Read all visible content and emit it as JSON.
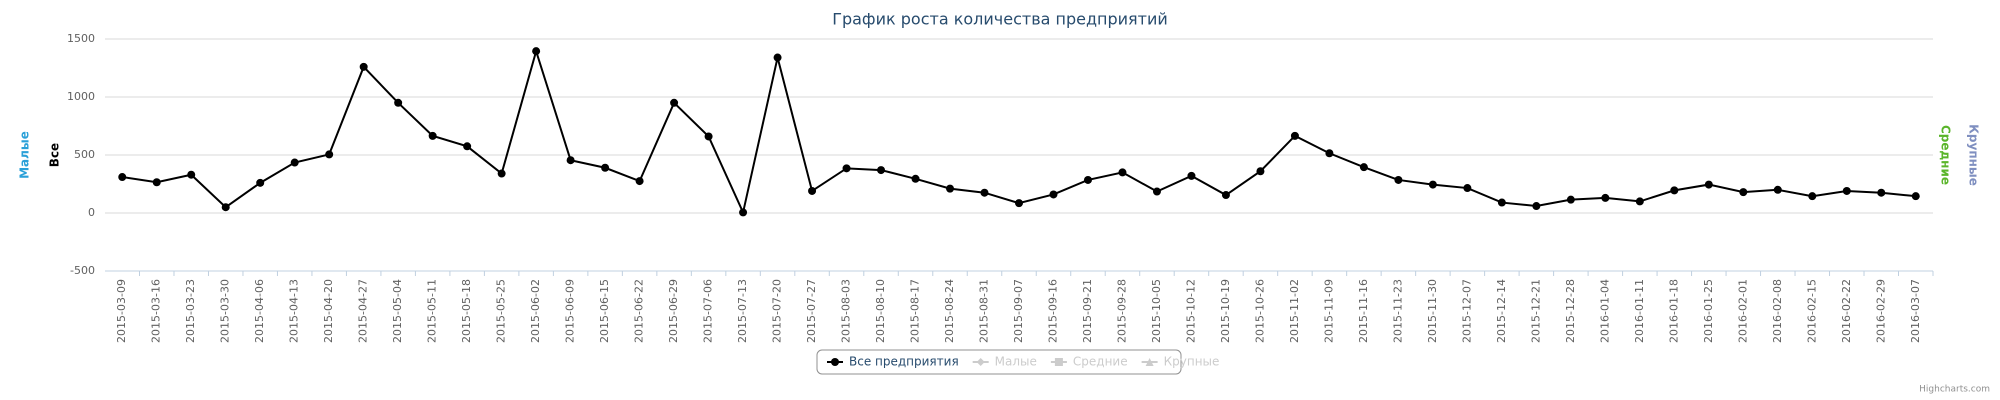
{
  "chart_data": {
    "type": "line",
    "title": "График роста количества предприятий",
    "axis_titles": [
      {
        "text": "Малые",
        "color": "#2aa0d8"
      },
      {
        "text": "Все",
        "color": "#000000"
      },
      {
        "text": "Средние",
        "color": "#5ab52a"
      },
      {
        "text": "Крупные",
        "color": "#7f8fc0"
      }
    ],
    "categories": [
      "2015-03-09",
      "2015-03-16",
      "2015-03-23",
      "2015-03-30",
      "2015-04-06",
      "2015-04-13",
      "2015-04-20",
      "2015-04-27",
      "2015-05-04",
      "2015-05-11",
      "2015-05-18",
      "2015-05-25",
      "2015-06-02",
      "2015-06-09",
      "2015-06-15",
      "2015-06-22",
      "2015-06-29",
      "2015-07-06",
      "2015-07-13",
      "2015-07-20",
      "2015-07-27",
      "2015-08-03",
      "2015-08-10",
      "2015-08-17",
      "2015-08-24",
      "2015-08-31",
      "2015-09-07",
      "2015-09-16",
      "2015-09-21",
      "2015-09-28",
      "2015-10-05",
      "2015-10-12",
      "2015-10-19",
      "2015-10-26",
      "2015-11-02",
      "2015-11-09",
      "2015-11-16",
      "2015-11-23",
      "2015-11-30",
      "2015-12-07",
      "2015-12-14",
      "2015-12-21",
      "2015-12-28",
      "2016-01-04",
      "2016-01-11",
      "2016-01-18",
      "2016-01-25",
      "2016-02-01",
      "2016-02-08",
      "2016-02-15",
      "2016-02-22",
      "2016-02-29",
      "2016-03-07"
    ],
    "series": [
      {
        "name": "Все предприятия",
        "color": "#000000",
        "values": [
          310,
          265,
          330,
          50,
          260,
          435,
          505,
          1260,
          950,
          665,
          575,
          340,
          1395,
          455,
          390,
          275,
          950,
          660,
          5,
          1340,
          190,
          385,
          370,
          295,
          210,
          175,
          85,
          160,
          285,
          350,
          185,
          320,
          155,
          360,
          665,
          515,
          395,
          285,
          245,
          215,
          90,
          60,
          115,
          130,
          100,
          195,
          245,
          180,
          200,
          145,
          190,
          175,
          145
        ]
      }
    ],
    "hidden_legend": [
      {
        "name": "Малые",
        "symbol": "diamond"
      },
      {
        "name": "Средние",
        "symbol": "square"
      },
      {
        "name": "Крупные",
        "symbol": "triangle"
      }
    ],
    "ylim": [
      -500,
      1500
    ],
    "yticks": [
      -500,
      0,
      500,
      1000,
      1500
    ],
    "grid": true,
    "credits": "Highcharts.com"
  }
}
